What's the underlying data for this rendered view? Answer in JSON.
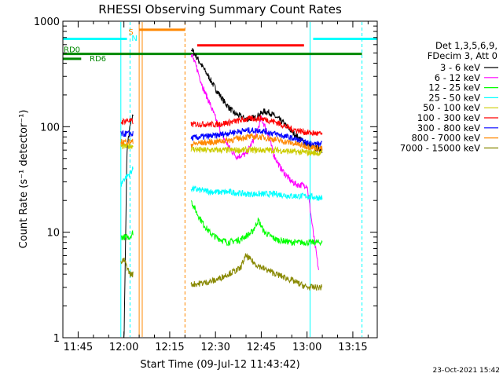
{
  "chart_data": {
    "type": "line",
    "title": "RHESSI Observing Summary Count Rates",
    "xlabel": "Start Time (09-Jul-12 11:43:42)",
    "ylabel": "Count Rate (s⁻¹ detector⁻¹)",
    "y_scale": "log",
    "ylim": [
      1,
      1000
    ],
    "xlim": [
      "11:40",
      "13:23"
    ],
    "x_ticks": [
      "11:45",
      "12:00",
      "12:15",
      "12:30",
      "12:45",
      "13:00",
      "13:15"
    ],
    "y_ticks": [
      "1",
      "10",
      "100",
      "1000"
    ],
    "legend_header": [
      "Det 1,3,5,6,9,",
      "FDecim 3, Att 0"
    ],
    "legend_position": "right",
    "timestamp": "23-Oct-2021 15:42",
    "series": [
      {
        "name": "3 - 6 keV",
        "color": "#000000",
        "x": [
          "11:59",
          "12:01",
          "12:02",
          "12:03",
          "12:22",
          "12:24",
          "12:26",
          "12:28",
          "12:30",
          "12:33",
          "12:36",
          "12:40",
          "12:43",
          "12:46",
          "12:48",
          "12:52",
          "12:55",
          "12:58",
          "13:01",
          "13:05"
        ],
        "y": [
          0,
          60,
          100,
          130,
          550,
          450,
          360,
          290,
          230,
          170,
          135,
          118,
          122,
          140,
          135,
          110,
          90,
          75,
          65,
          60
        ]
      },
      {
        "name": "6 - 12 keV",
        "color": "#ff00ff",
        "x": [
          "12:22",
          "12:24",
          "12:26",
          "12:28",
          "12:30",
          "12:32",
          "12:35",
          "12:37",
          "12:40",
          "12:43",
          "12:45",
          "12:47",
          "12:49",
          "12:51",
          "12:53",
          "12:55",
          "12:57",
          "13:00",
          "13:02",
          "13:04"
        ],
        "y": [
          500,
          350,
          230,
          170,
          120,
          85,
          60,
          52,
          55,
          80,
          120,
          90,
          55,
          42,
          35,
          30,
          28,
          28,
          10,
          4
        ]
      },
      {
        "name": "12 - 25 keV",
        "color": "#00ff00",
        "x": [
          "11:59",
          "12:00",
          "12:02",
          "12:03",
          "12:22",
          "12:24",
          "12:26",
          "12:28",
          "12:30",
          "12:34",
          "12:38",
          "12:42",
          "12:44",
          "12:46",
          "12:50",
          "12:55",
          "13:00",
          "13:05"
        ],
        "y": [
          9,
          9,
          9,
          10,
          20,
          15,
          12,
          10,
          9,
          8,
          8.5,
          10,
          13,
          10,
          8.5,
          8,
          8,
          8
        ]
      },
      {
        "name": "25 - 50 keV",
        "color": "#00ffff",
        "x": [
          "11:59",
          "12:00",
          "12:02",
          "12:03",
          "12:22",
          "12:25",
          "12:30",
          "12:35",
          "12:40",
          "12:45",
          "12:50",
          "12:55",
          "13:00",
          "13:05"
        ],
        "y": [
          28,
          32,
          36,
          40,
          26,
          25,
          24,
          24,
          23,
          23,
          23,
          22,
          22,
          21
        ]
      },
      {
        "name": "50 - 100 keV",
        "color": "#cccc00",
        "x": [
          "11:59",
          "12:01",
          "12:03",
          "12:22",
          "12:25",
          "12:30",
          "12:35",
          "12:40",
          "12:45",
          "12:50",
          "12:55",
          "13:00",
          "13:05"
        ],
        "y": [
          65,
          65,
          66,
          62,
          60,
          60,
          60,
          60,
          60,
          60,
          58,
          57,
          56
        ]
      },
      {
        "name": "100 - 300 keV",
        "color": "#ff0000",
        "x": [
          "11:59",
          "12:01",
          "12:03",
          "12:22",
          "12:25",
          "12:30",
          "12:35",
          "12:40",
          "12:45",
          "12:50",
          "12:55",
          "13:00",
          "13:05"
        ],
        "y": [
          110,
          115,
          112,
          105,
          106,
          105,
          110,
          118,
          120,
          110,
          95,
          88,
          85
        ]
      },
      {
        "name": "300 - 800 keV",
        "color": "#0000ff",
        "x": [
          "11:59",
          "12:01",
          "12:03",
          "12:22",
          "12:25",
          "12:30",
          "12:35",
          "12:40",
          "12:45",
          "12:50",
          "12:55",
          "13:00",
          "13:05"
        ],
        "y": [
          85,
          86,
          85,
          78,
          80,
          82,
          88,
          92,
          92,
          85,
          78,
          70,
          68
        ]
      },
      {
        "name": "800 - 7000 keV",
        "color": "#ff8800",
        "x": [
          "11:59",
          "12:01",
          "12:03",
          "12:22",
          "12:25",
          "12:30",
          "12:35",
          "12:40",
          "12:45",
          "12:50",
          "12:55",
          "13:00",
          "13:05"
        ],
        "y": [
          72,
          72,
          72,
          68,
          70,
          72,
          75,
          80,
          80,
          75,
          70,
          65,
          62
        ]
      },
      {
        "name": "7000 - 15000 keV",
        "color": "#888800",
        "x": [
          "11:59",
          "12:00",
          "12:02",
          "12:03",
          "12:22",
          "12:26",
          "12:30",
          "12:34",
          "12:38",
          "12:40",
          "12:43",
          "12:46",
          "12:50",
          "12:55",
          "13:00",
          "13:05"
        ],
        "y": [
          5,
          5.5,
          4,
          4,
          3.2,
          3.3,
          3.5,
          4,
          4.5,
          6,
          5,
          4.5,
          4,
          3.5,
          3,
          3
        ]
      }
    ],
    "flag_bars": [
      {
        "label": "S",
        "color": "#ff8800",
        "x": [
          "12:03",
          "12:03"
        ],
        "y_level": 850
      },
      {
        "label": "N",
        "color": "#00ffff",
        "x": [
          "12:03",
          "12:03"
        ],
        "y_level": 850
      },
      {
        "label": "",
        "color": "#00ffff",
        "x": [
          "11:40",
          "12:01"
        ],
        "y_level": 680
      },
      {
        "label": "",
        "color": "#ff8800",
        "x": [
          "12:05",
          "12:20"
        ],
        "y_level": 830
      },
      {
        "label": "",
        "color": "#ff0000",
        "x": [
          "12:24",
          "12:59"
        ],
        "y_level": 590
      },
      {
        "label": "",
        "color": "#00ffff",
        "x": [
          "13:02",
          "13:23"
        ],
        "y_level": 680
      },
      {
        "label": "RD0",
        "color": "#008800",
        "x": [
          "11:40",
          "13:18"
        ],
        "y_level": 490
      },
      {
        "label": "RD6",
        "color": "#008800",
        "x": [
          "11:40",
          "11:46"
        ],
        "y_level": 440
      }
    ],
    "grid": false
  }
}
